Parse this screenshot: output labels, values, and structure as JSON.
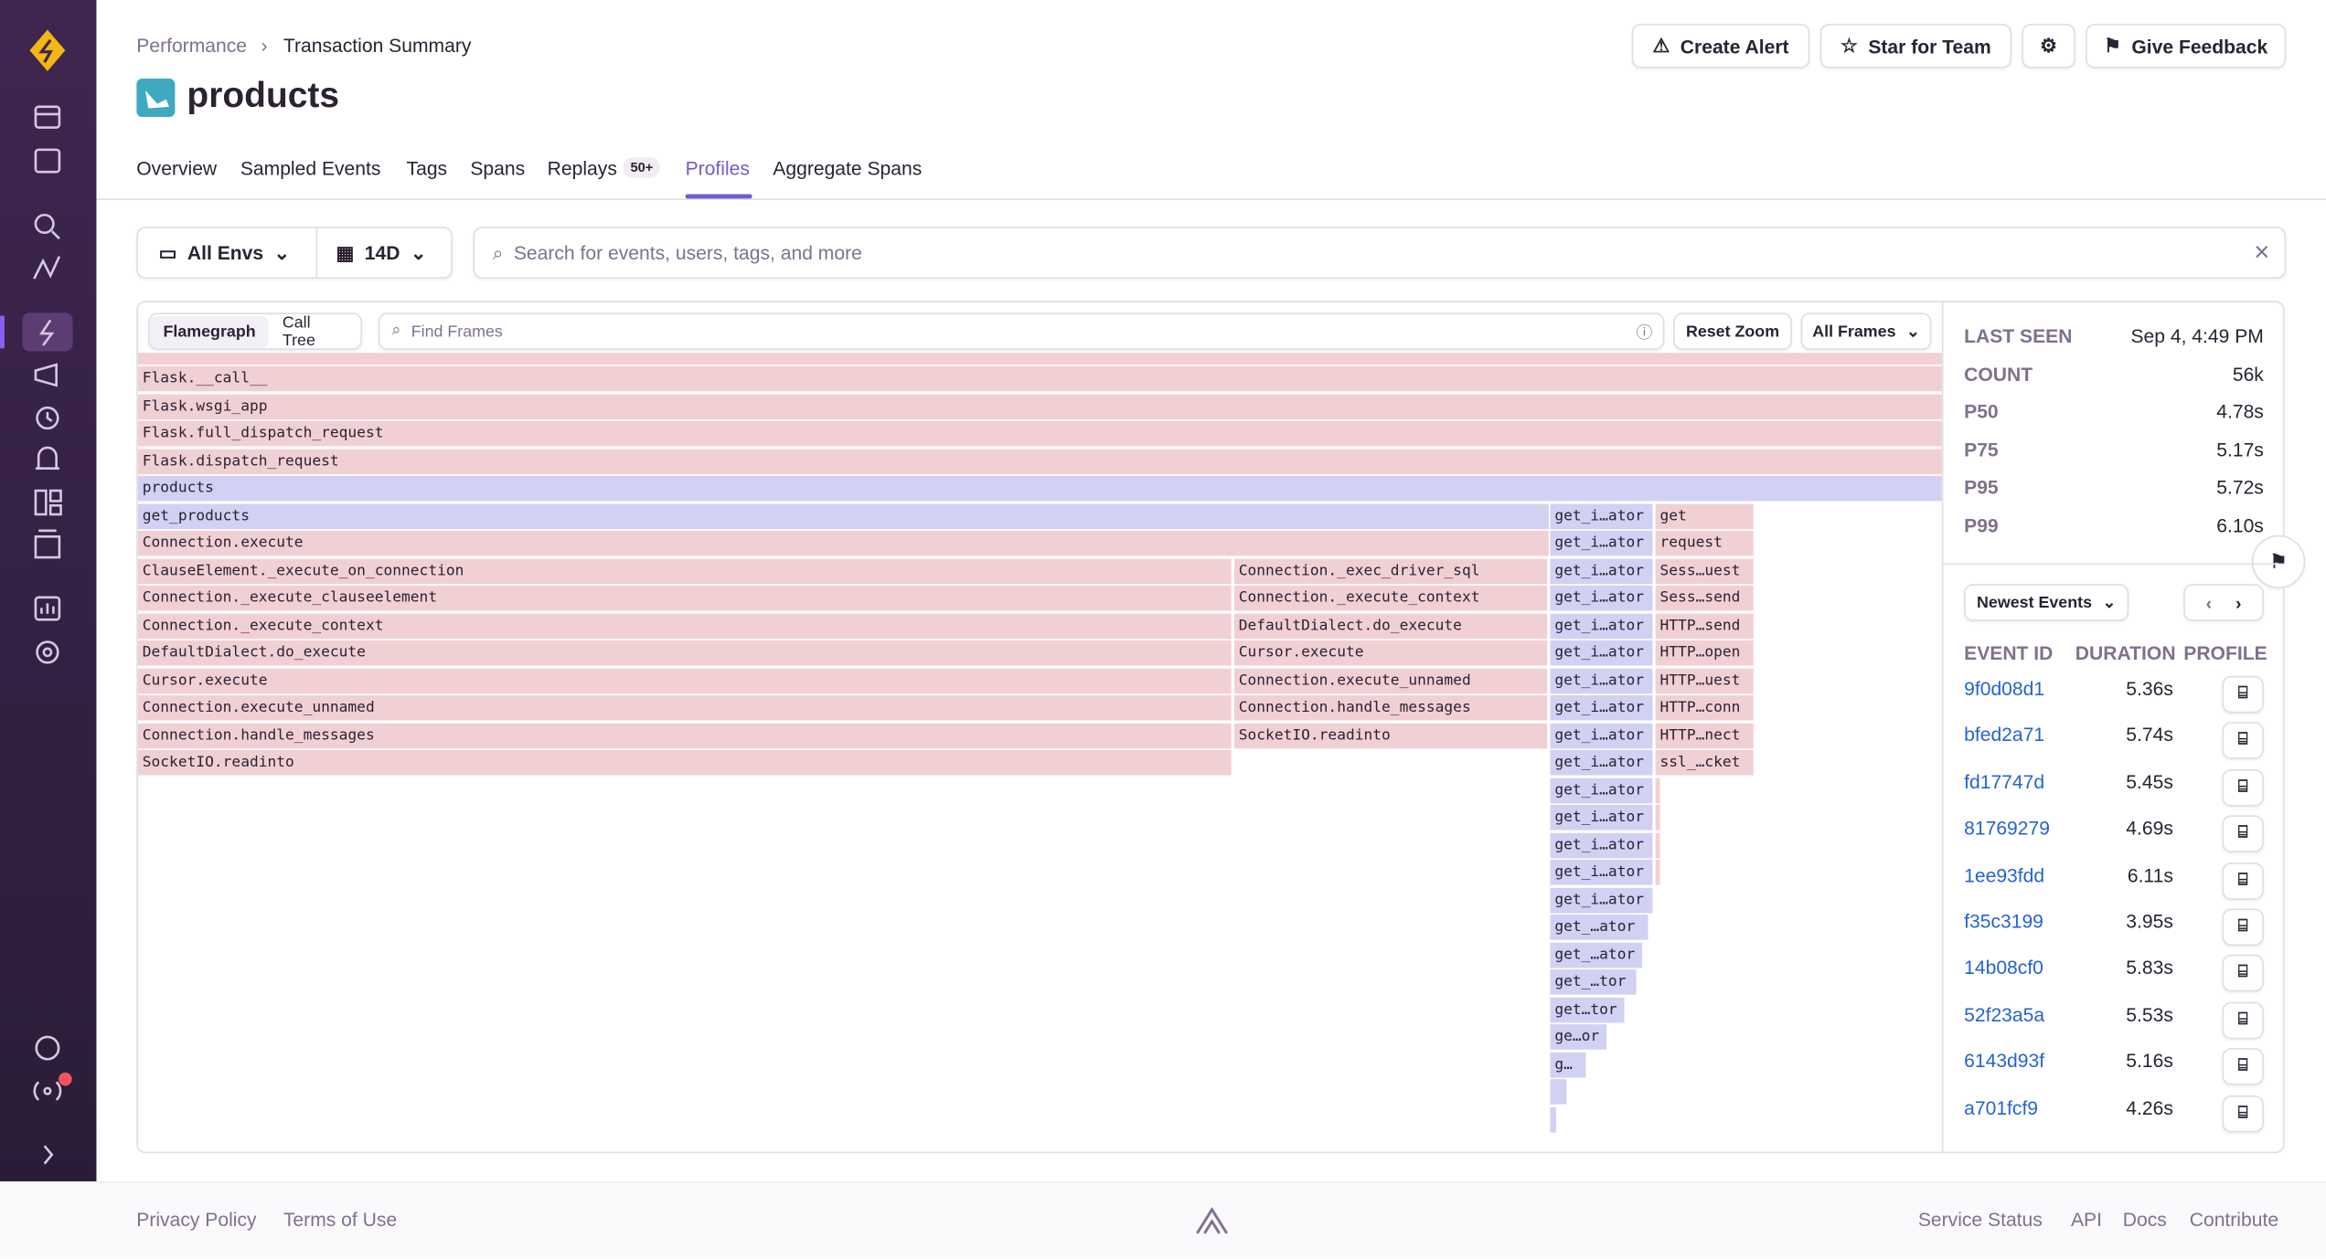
{
  "header": {
    "breadcrumb": [
      "Performance",
      "Transaction Summary"
    ],
    "title": "products",
    "buttons": [
      "Create Alert",
      "Star for Team",
      "Give Feedback"
    ]
  },
  "tabs": {
    "items": [
      "Overview",
      "Sampled Events",
      "Tags",
      "Spans",
      "Replays",
      "Profiles",
      "Aggregate Spans"
    ],
    "replays_badge": "50+",
    "active": "Profiles"
  },
  "filters": {
    "environment": "All Envs",
    "period": "14D",
    "search_placeholder": "Search for events, users, tags, and more"
  },
  "profile": {
    "view_tabs": [
      "Flamegraph",
      "Call Tree"
    ],
    "find_placeholder": "Find Frames",
    "reset_zoom": "Reset Zoom",
    "frame_filter": "All Frames",
    "frames": [
      "Flask.__call__",
      "Flask.wsgi_app",
      "Flask.full_dispatch_request",
      "Flask.dispatch_request",
      "products",
      "get_products",
      "get_i…ator",
      "get",
      "Connection.execute",
      "get_i…ator",
      "request",
      "ClauseElement._execute_on_connection",
      "Connection._exec_driver_sql",
      "get_i…ator",
      "Sess…uest",
      "Connection._execute_clauseelement",
      "Connection._execute_context",
      "get_i…ator",
      "Sess…send",
      "Connection._execute_context",
      "DefaultDialect.do_execute",
      "get_i…ator",
      "HTTP…send",
      "DefaultDialect.do_execute",
      "Cursor.execute",
      "get_i…ator",
      "HTTP…open",
      "Cursor.execute",
      "Connection.execute_unnamed",
      "get_i…ator",
      "HTTP…uest",
      "Connection.execute_unnamed",
      "Connection.handle_messages",
      "get_i…ator",
      "HTTP…conn",
      "Connection.handle_messages",
      "SocketIO.readinto",
      "get_i…ator",
      "HTTP…nect",
      "SocketIO.readinto",
      "get_i…ator",
      "ssl_…cket",
      "get_i…ator",
      "get_i…ator",
      "get_i…ator",
      "get_i…ator",
      "get_i…ator",
      "get_…ator",
      "get_…ator",
      "get_…tor",
      "get…tor",
      "ge…or",
      "g…"
    ]
  },
  "summary": {
    "stats": [
      {
        "label": "LAST SEEN",
        "value": "Sep 4, 4:49 PM"
      },
      {
        "label": "COUNT",
        "value": "56k"
      },
      {
        "label": "P50",
        "value": "4.78s"
      },
      {
        "label": "P75",
        "value": "5.17s"
      },
      {
        "label": "P95",
        "value": "5.72s"
      },
      {
        "label": "P99",
        "value": "6.10s"
      }
    ]
  },
  "events": {
    "sort": "Newest Events",
    "columns": [
      "EVENT ID",
      "DURATION",
      "PROFILE"
    ],
    "rows": [
      [
        "9f0d08d1",
        "5.36s"
      ],
      [
        "bfed2a71",
        "5.74s"
      ],
      [
        "fd17747d",
        "5.45s"
      ],
      [
        "81769279",
        "4.69s"
      ],
      [
        "1ee93fdd",
        "6.11s"
      ],
      [
        "f35c3199",
        "3.95s"
      ],
      [
        "14b08cf0",
        "5.83s"
      ],
      [
        "52f23a5a",
        "5.53s"
      ],
      [
        "6143d93f",
        "5.16s"
      ],
      [
        "a701fcf9",
        "4.26s"
      ]
    ]
  },
  "footer": {
    "left": [
      "Privacy Policy",
      "Terms of Use"
    ],
    "right": [
      "Service Status",
      "API",
      "Docs",
      "Contribute"
    ]
  }
}
